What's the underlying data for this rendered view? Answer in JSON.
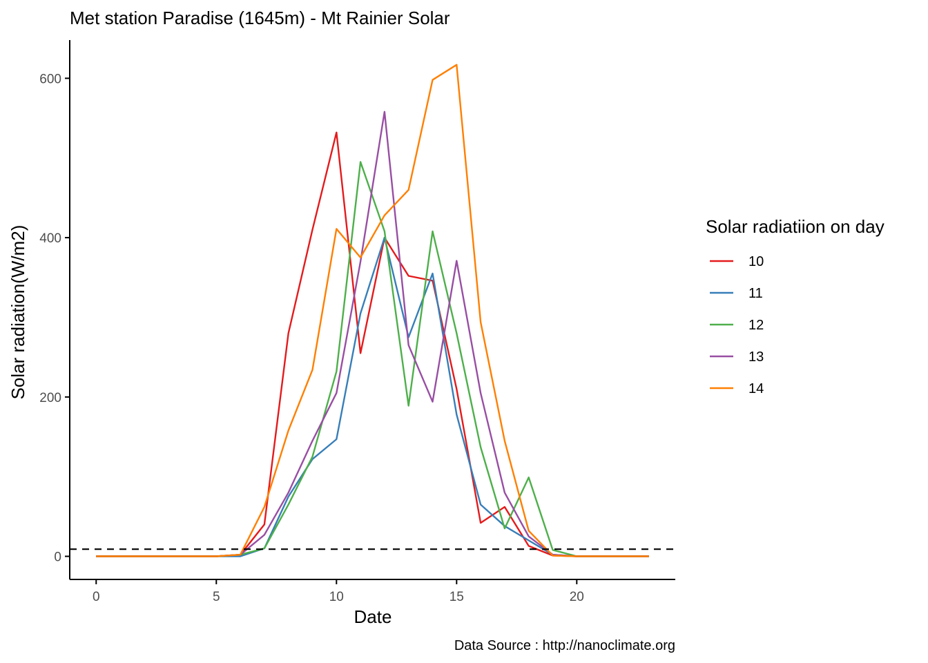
{
  "chart_data": {
    "type": "line",
    "title": "Met station Paradise (1645m) -  Mt Rainier  Solar",
    "xlabel": "Date",
    "ylabel": "Solar radiation(W/m2)",
    "caption": "Data Source : http://nanoclimate.org",
    "xlim": [
      -1.1,
      24.1
    ],
    "ylim": [
      -29,
      648
    ],
    "x_ticks": [
      0,
      5,
      10,
      15,
      20
    ],
    "y_ticks": [
      0,
      200,
      400,
      600
    ],
    "grid": false,
    "legend": {
      "title": "Solar radiatiion on day",
      "position": "right"
    },
    "reference_line": {
      "y": 9,
      "style": "dashed",
      "color": "#000000"
    },
    "x": [
      0,
      1,
      2,
      3,
      4,
      5,
      6,
      7,
      8,
      9,
      10,
      11,
      12,
      13,
      14,
      15,
      16,
      17,
      18,
      19,
      20,
      21,
      22,
      23
    ],
    "series": [
      {
        "name": "10",
        "color": "#e41a1c",
        "values": [
          0,
          0,
          0,
          0,
          0,
          0,
          2,
          40,
          280,
          410,
          532,
          255,
          400,
          352,
          346,
          210,
          42,
          62,
          13,
          1,
          0,
          0,
          0,
          0
        ]
      },
      {
        "name": "11",
        "color": "#377eb8",
        "values": [
          0,
          0,
          0,
          0,
          0,
          0,
          0,
          10,
          75,
          122,
          147,
          305,
          400,
          275,
          355,
          178,
          65,
          38,
          20,
          2,
          0,
          0,
          0,
          0
        ]
      },
      {
        "name": "12",
        "color": "#4daf4a",
        "values": [
          0,
          0,
          0,
          0,
          0,
          0,
          2,
          10,
          65,
          125,
          232,
          495,
          408,
          189,
          408,
          280,
          137,
          35,
          99,
          8,
          0,
          0,
          0,
          0
        ]
      },
      {
        "name": "13",
        "color": "#984ea3",
        "values": [
          0,
          0,
          0,
          0,
          0,
          0,
          2,
          27,
          80,
          145,
          205,
          370,
          558,
          265,
          194,
          371,
          205,
          80,
          25,
          2,
          0,
          0,
          0,
          0
        ]
      },
      {
        "name": "14",
        "color": "#ff7f00",
        "values": [
          0,
          0,
          0,
          0,
          0,
          0,
          2,
          62,
          158,
          234,
          411,
          375,
          428,
          460,
          598,
          617,
          294,
          145,
          32,
          1,
          0,
          0,
          0,
          0
        ]
      }
    ]
  }
}
